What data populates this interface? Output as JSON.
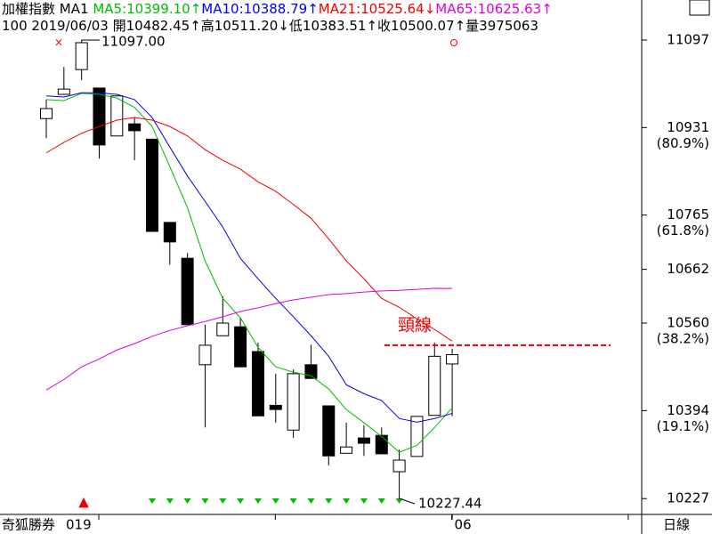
{
  "chart_data": {
    "type": "candlestick",
    "title": "加權指數",
    "subtitle": "MA1",
    "info_line": "100 2019/06/03 開10482.45↑高10511.20↓低10383.51↑收10500.07↑量3975063",
    "categories": [
      null,
      null,
      null,
      null,
      null,
      null,
      null,
      null,
      null,
      null,
      null,
      null,
      null,
      null,
      null,
      null,
      null,
      null,
      null,
      null,
      null,
      null,
      null,
      "06"
    ],
    "year_label": "019",
    "watermark": "奇狐勝券",
    "period_label": "日線",
    "open": [
      10948,
      10994,
      11041,
      11006,
      10915,
      10938,
      10909,
      10751,
      10683,
      10481,
      10536,
      10553,
      10506,
      10404,
      10357,
      10481,
      10403,
      10313,
      10342,
      10347,
      10278,
      10307,
      10385,
      10482.45
    ],
    "high": [
      10984,
      11046,
      11097,
      11006,
      10991,
      10950,
      10909,
      10751,
      10693,
      10557,
      10611,
      10570,
      10523,
      10464,
      10472,
      10519,
      10403,
      10371,
      10366,
      10362,
      10320,
      10383,
      10523,
      10511.2
    ],
    "low": [
      10911,
      10994,
      11021,
      10872,
      10915,
      10869,
      10734,
      10671,
      10557,
      10362,
      10536,
      10477,
      10384,
      10371,
      10342,
      10455,
      10290,
      10313,
      10308,
      10312,
      10227.44,
      10307,
      10385,
      10383.51
    ],
    "close": [
      10967,
      11004,
      11092,
      10898,
      10991,
      10925,
      10734,
      10714,
      10557,
      10518,
      10560,
      10477,
      10384,
      10396,
      10464,
      10455,
      10308,
      10325,
      10332,
      10312,
      10300,
      10383,
      10497,
      10500.07
    ],
    "up_color": "#ffffff",
    "down_color": "#000000",
    "series": [
      {
        "name": "MA5:10399.10",
        "arrow": "↑",
        "color": "#00bb00",
        "values": [
          10984,
          10982,
          10996,
          10994,
          10987,
          10969,
          10933,
          10857,
          10779,
          10678,
          10607,
          10570,
          10514,
          10477,
          10467,
          10460,
          10435,
          10396,
          10371,
          10345,
          10315,
          10328,
          10362,
          10399.1
        ]
      },
      {
        "name": "MA10:10388.79",
        "arrow": "↑",
        "color": "#0000ee",
        "values": [
          10991,
          10989,
          10997,
          10997,
          10994,
          10984,
          10950,
          10894,
          10839,
          10791,
          10742,
          10683,
          10644,
          10607,
          10572,
          10536,
          10497,
          10443,
          10426,
          10413,
          10379,
          10372,
          10379,
          10388.79
        ]
      },
      {
        "name": "MA21:10525.64",
        "arrow": "↓",
        "color": "#ee0000",
        "values": [
          10883,
          10903,
          10920,
          10933,
          10945,
          10950,
          10945,
          10933,
          10915,
          10889,
          10869,
          10852,
          10828,
          10810,
          10785,
          10759,
          10720,
          10678,
          10644,
          10607,
          10590,
          10568,
          10548,
          10525.64
        ]
      },
      {
        "name": "MA65:10625.63",
        "arrow": "↑",
        "color": "#dd00dd",
        "values": [
          10433,
          10453,
          10477,
          10492,
          10509,
          10521,
          10535,
          10546,
          10555,
          10563,
          10572,
          10582,
          10589,
          10597,
          10604,
          10609,
          10614,
          10616,
          10619,
          10621,
          10622,
          10624,
          10626,
          10625.63
        ]
      }
    ],
    "ylim": [
      10197,
      11173
    ],
    "yticks": [
      11097,
      10931,
      10765,
      10662,
      10560,
      10394,
      10227
    ],
    "yratio_ticks": [
      {
        "value": 10931,
        "label": "(80.9%)"
      },
      {
        "value": 10765,
        "label": "(61.8%)"
      },
      {
        "value": 10560,
        "label": "(38.2%)"
      },
      {
        "value": 10394,
        "label": "(19.1%)"
      }
    ],
    "high_annotation": {
      "value": 11097,
      "label": "11097.00"
    },
    "low_annotation": {
      "value": 10227.44,
      "label": "10227.44"
    },
    "neckline": {
      "value": 10518,
      "label": "頸線",
      "color": "#ee0000"
    }
  }
}
